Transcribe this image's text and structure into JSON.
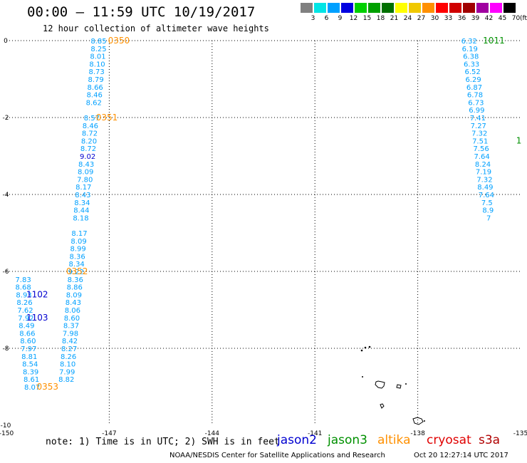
{
  "header": {
    "title": "00:00 – 11:59 UTC 10/19/2017",
    "subtitle": "12 hour collection of altimeter wave heights"
  },
  "legend": {
    "labels": [
      "3",
      "6",
      "9",
      "12",
      "15",
      "18",
      "21",
      "24",
      "27",
      "30",
      "33",
      "36",
      "39",
      "42",
      "45",
      "70"
    ],
    "colors": [
      "#808080",
      "#00e5e5",
      "#00a0ff",
      "#0000e0",
      "#00d000",
      "#00a000",
      "#007000",
      "#ffff00",
      "#f0c800",
      "#ff9000",
      "#ff0000",
      "#d00000",
      "#a00000",
      "#a000a0",
      "#ff00ff",
      "#000000"
    ],
    "unit": "(ft)"
  },
  "footer": {
    "note": "note: 1) Time is in UTC; 2) SWH is in feet",
    "missions": [
      {
        "name": "jason2",
        "color": "#0000d0"
      },
      {
        "name": "jason3",
        "color": "#009000"
      },
      {
        "name": "altika",
        "color": "#ff9000"
      },
      {
        "name": "cryosat",
        "color": "#e00000"
      },
      {
        "name": "s3a",
        "color": "#b00000"
      }
    ],
    "credit": "NOAA/NESDIS Center for Satellite Applications and Research",
    "timestamp": "Oct 20 12:27:14 UTC 2017"
  },
  "chart_data": {
    "type": "scatter",
    "title": "00:00 – 11:59 UTC 10/19/2017",
    "subtitle": "12 hour collection of altimeter wave heights",
    "xlim": [
      -150,
      -135
    ],
    "ylim": [
      -10,
      0
    ],
    "x_ticks": [
      -150,
      -147,
      -144,
      -141,
      -138,
      -135
    ],
    "y_ticks": [
      0,
      -2,
      -4,
      -6,
      -8,
      -10
    ],
    "grid": true,
    "tick_labels": {
      "x": [
        "-150",
        "-147",
        "-144",
        "-141",
        "-138",
        "-135"
      ],
      "y": [
        "0",
        "-2",
        "-4",
        "-6",
        "-8",
        "-10"
      ]
    },
    "track_labels": [
      {
        "text": "0350",
        "x": -146.72,
        "y": 0.0,
        "color": "#ff9000"
      },
      {
        "text": "0351",
        "x": -147.07,
        "y": -2.0,
        "color": "#ff9000"
      },
      {
        "text": "0352",
        "x": -147.94,
        "y": -6.0,
        "color": "#ff9000"
      },
      {
        "text": "0353",
        "x": -148.8,
        "y": -9.0,
        "color": "#ff9000"
      },
      {
        "text": "1102",
        "x": -149.1,
        "y": -6.6,
        "color": "#0000d0"
      },
      {
        "text": "1103",
        "x": -149.1,
        "y": -7.2,
        "color": "#0000d0"
      },
      {
        "text": "1011",
        "x": -135.78,
        "y": 0.0,
        "color": "#009000"
      },
      {
        "text": "1",
        "x": -135.05,
        "y": -2.6,
        "color": "#009000"
      }
    ],
    "series": [
      {
        "name": "altika",
        "color": "#00a0ff",
        "points": [
          {
            "x": -147.31,
            "y": 0.0,
            "v": "8.85"
          },
          {
            "x": -147.31,
            "y": -0.2,
            "v": "8.25"
          },
          {
            "x": -147.33,
            "y": -0.4,
            "v": "8.01"
          },
          {
            "x": -147.35,
            "y": -0.6,
            "v": "8.10"
          },
          {
            "x": -147.37,
            "y": -0.8,
            "v": "8.73"
          },
          {
            "x": -147.39,
            "y": -1.0,
            "v": "8.79"
          },
          {
            "x": -147.41,
            "y": -1.2,
            "v": "8.66"
          },
          {
            "x": -147.43,
            "y": -1.4,
            "v": "8.46"
          },
          {
            "x": -147.45,
            "y": -1.6,
            "v": "8.62"
          },
          {
            "x": -147.51,
            "y": -2.0,
            "v": "8.57"
          },
          {
            "x": -147.55,
            "y": -2.2,
            "v": "8.46"
          },
          {
            "x": -147.57,
            "y": -2.4,
            "v": "8.72"
          },
          {
            "x": -147.59,
            "y": -2.6,
            "v": "8.20"
          },
          {
            "x": -147.61,
            "y": -2.8,
            "v": "8.72"
          },
          {
            "x": -147.63,
            "y": -3.0,
            "v": "9.02",
            "color": "#0000d0"
          },
          {
            "x": -147.67,
            "y": -3.2,
            "v": "8.43"
          },
          {
            "x": -147.69,
            "y": -3.4,
            "v": "8.09"
          },
          {
            "x": -147.71,
            "y": -3.6,
            "v": "7.80"
          },
          {
            "x": -147.75,
            "y": -3.8,
            "v": "8.17"
          },
          {
            "x": -147.77,
            "y": -4.0,
            "v": "8.43"
          },
          {
            "x": -147.79,
            "y": -4.2,
            "v": "8.34"
          },
          {
            "x": -147.81,
            "y": -4.4,
            "v": "8.44"
          },
          {
            "x": -147.83,
            "y": -4.6,
            "v": "8.18"
          },
          {
            "x": -147.87,
            "y": -5.0,
            "v": "8.17"
          },
          {
            "x": -147.89,
            "y": -5.2,
            "v": "8.09"
          },
          {
            "x": -147.91,
            "y": -5.4,
            "v": "8.99"
          },
          {
            "x": -147.93,
            "y": -5.6,
            "v": "8.36"
          },
          {
            "x": -147.95,
            "y": -5.8,
            "v": "8.34"
          },
          {
            "x": -147.97,
            "y": -6.0,
            "v": "9.22"
          },
          {
            "x": -147.99,
            "y": -6.2,
            "v": "8.36"
          },
          {
            "x": -148.01,
            "y": -6.4,
            "v": "8.86"
          },
          {
            "x": -148.03,
            "y": -6.6,
            "v": "8.09"
          },
          {
            "x": -148.05,
            "y": -6.8,
            "v": "8.43"
          },
          {
            "x": -148.07,
            "y": -7.0,
            "v": "8.06"
          },
          {
            "x": -148.09,
            "y": -7.2,
            "v": "8.60"
          },
          {
            "x": -148.11,
            "y": -7.4,
            "v": "8.37"
          },
          {
            "x": -148.13,
            "y": -7.6,
            "v": "7.98"
          },
          {
            "x": -148.15,
            "y": -7.8,
            "v": "8.42"
          },
          {
            "x": -148.17,
            "y": -8.0,
            "v": "8.27"
          },
          {
            "x": -148.19,
            "y": -8.2,
            "v": "8.26"
          },
          {
            "x": -148.21,
            "y": -8.4,
            "v": "8.10"
          },
          {
            "x": -148.23,
            "y": -8.6,
            "v": "7.99"
          },
          {
            "x": -148.25,
            "y": -8.8,
            "v": "8.82"
          }
        ]
      },
      {
        "name": "jason2",
        "color": "#00a0ff",
        "points": [
          {
            "x": -149.51,
            "y": -6.2,
            "v": "7.83"
          },
          {
            "x": -149.51,
            "y": -6.4,
            "v": "8.68"
          },
          {
            "x": -149.49,
            "y": -6.6,
            "v": "8.93"
          },
          {
            "x": -149.47,
            "y": -6.8,
            "v": "8.26"
          },
          {
            "x": -149.45,
            "y": -7.0,
            "v": "7.62"
          },
          {
            "x": -149.43,
            "y": -7.2,
            "v": "7.92"
          },
          {
            "x": -149.41,
            "y": -7.4,
            "v": "8.49"
          },
          {
            "x": -149.39,
            "y": -7.6,
            "v": "8.66"
          },
          {
            "x": -149.37,
            "y": -7.8,
            "v": "8.60"
          },
          {
            "x": -149.35,
            "y": -8.0,
            "v": "7.97"
          },
          {
            "x": -149.33,
            "y": -8.2,
            "v": "8.81"
          },
          {
            "x": -149.31,
            "y": -8.4,
            "v": "8.54"
          },
          {
            "x": -149.29,
            "y": -8.6,
            "v": "8.39"
          },
          {
            "x": -149.27,
            "y": -8.8,
            "v": "8.61"
          },
          {
            "x": -149.25,
            "y": -9.0,
            "v": "8.07"
          }
        ]
      },
      {
        "name": "jason3",
        "color": "#00a0ff",
        "points": [
          {
            "x": -136.5,
            "y": 0.0,
            "v": "6.32"
          },
          {
            "x": -136.48,
            "y": -0.2,
            "v": "6.19"
          },
          {
            "x": -136.45,
            "y": -0.4,
            "v": "6.38"
          },
          {
            "x": -136.43,
            "y": -0.6,
            "v": "6.33"
          },
          {
            "x": -136.4,
            "y": -0.8,
            "v": "6.52"
          },
          {
            "x": -136.38,
            "y": -1.0,
            "v": "6.29"
          },
          {
            "x": -136.35,
            "y": -1.2,
            "v": "6.87"
          },
          {
            "x": -136.33,
            "y": -1.4,
            "v": "6.78"
          },
          {
            "x": -136.3,
            "y": -1.6,
            "v": "6.73"
          },
          {
            "x": -136.28,
            "y": -1.8,
            "v": "6.99"
          },
          {
            "x": -136.25,
            "y": -2.0,
            "v": "7.41"
          },
          {
            "x": -136.23,
            "y": -2.2,
            "v": "7.27"
          },
          {
            "x": -136.2,
            "y": -2.4,
            "v": "7.32"
          },
          {
            "x": -136.18,
            "y": -2.6,
            "v": "7.51"
          },
          {
            "x": -136.15,
            "y": -2.8,
            "v": "7.56"
          },
          {
            "x": -136.13,
            "y": -3.0,
            "v": "7.64"
          },
          {
            "x": -136.1,
            "y": -3.2,
            "v": "8.24"
          },
          {
            "x": -136.08,
            "y": -3.4,
            "v": "7.19"
          },
          {
            "x": -136.05,
            "y": -3.6,
            "v": "7.32"
          },
          {
            "x": -136.03,
            "y": -3.8,
            "v": "8.49"
          },
          {
            "x": -136.0,
            "y": -4.0,
            "v": "7.64"
          },
          {
            "x": -135.98,
            "y": -4.2,
            "v": "7.5"
          },
          {
            "x": -135.95,
            "y": -4.4,
            "v": "8.9"
          },
          {
            "x": -135.93,
            "y": -4.6,
            "v": "7"
          }
        ]
      }
    ]
  }
}
